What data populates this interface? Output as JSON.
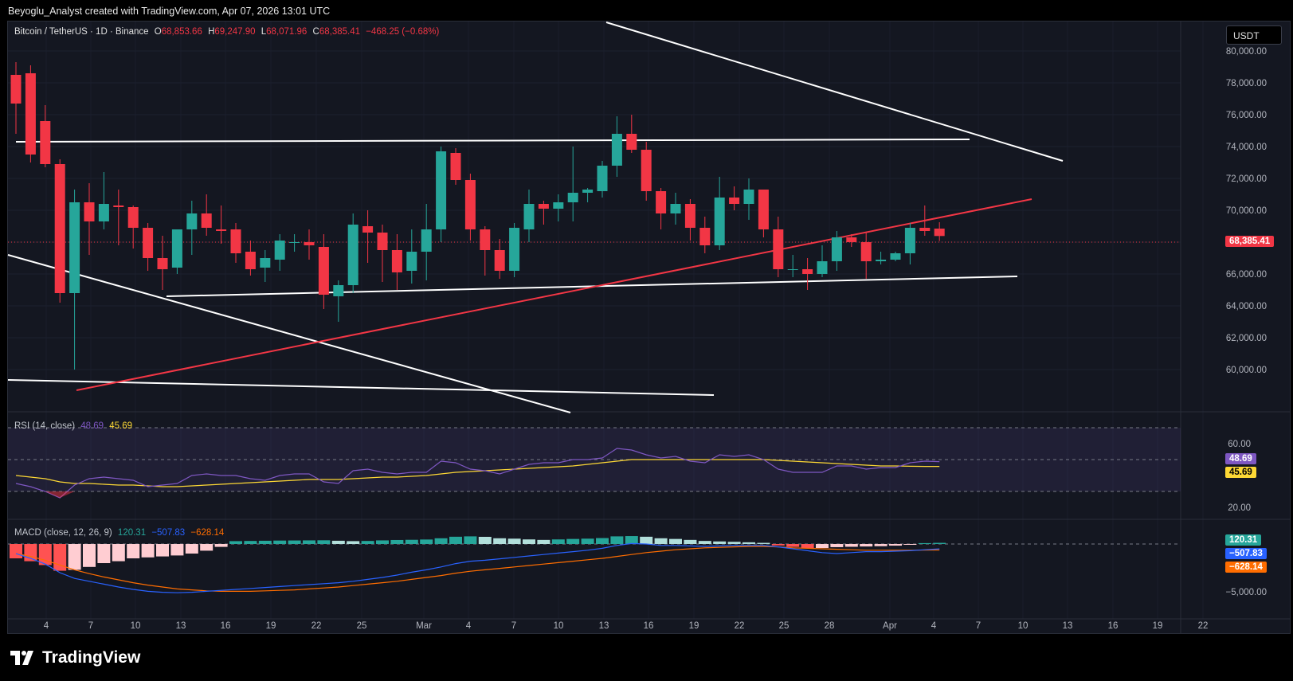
{
  "watermark": "Beyoglu_Analyst created with TradingView.com, Apr 07, 2026 13:01 UTC",
  "brand": "TradingView",
  "currency_button": "USDT",
  "legend": {
    "symbol": "Bitcoin / TetherUS · 1D · Binance",
    "o_label": "O",
    "o": "68,853.66",
    "h_label": "H",
    "h": "69,247.90",
    "l_label": "L",
    "l": "68,071.96",
    "c_label": "C",
    "c": "68,385.41",
    "change": "−468.25 (−0.68%)"
  },
  "rsi_legend": {
    "label": "RSI (14, close)",
    "v1": "48.69",
    "v2": "45.69"
  },
  "macd_legend": {
    "label": "MACD (close, 12, 26, 9)",
    "v1": "120.31",
    "v2": "−507.83",
    "v3": "−628.14"
  },
  "tags": {
    "price": "68,385.41",
    "rsi": "48.69",
    "rsi_ma": "45.69",
    "macd_hist": "120.31",
    "macd": "−507.83",
    "macd_signal": "−628.14"
  },
  "colors": {
    "up": "#26a69a",
    "down": "#f23645",
    "background": "#141721",
    "rsi": "#7e57c2",
    "rsi_ma": "#fdd835",
    "macd": "#2962ff",
    "signal": "#ff6d00"
  },
  "chart_data": [
    {
      "type": "candlestick",
      "title": "Bitcoin / TetherUS · 1D · Binance",
      "y_tick_labels": [
        "80,000.00",
        "78,000.00",
        "76,000.00",
        "74,000.00",
        "72,000.00",
        "70,000.00",
        "68,000.00",
        "66,000.00",
        "64,000.00",
        "62,000.00",
        "60,000.00"
      ],
      "x_tick_labels": [
        "4",
        "7",
        "10",
        "13",
        "16",
        "19",
        "22",
        "25",
        "Mar",
        "4",
        "7",
        "10",
        "13",
        "16",
        "19",
        "22",
        "25",
        "28",
        "Apr",
        "4",
        "7",
        "10",
        "13",
        "16",
        "19",
        "22"
      ],
      "ylim": [
        58500,
        80500
      ],
      "candles": [
        [
          78500,
          79300,
          74800,
          76700
        ],
        [
          78600,
          79100,
          73000,
          73500
        ],
        [
          75600,
          76600,
          72700,
          72900
        ],
        [
          72900,
          73200,
          64200,
          64800
        ],
        [
          64800,
          71300,
          60000,
          70500
        ],
        [
          70500,
          71700,
          67200,
          69300
        ],
        [
          69300,
          72400,
          68800,
          70400
        ],
        [
          70300,
          71300,
          67800,
          70200
        ],
        [
          70200,
          70300,
          67600,
          68900
        ],
        [
          68900,
          69200,
          66200,
          67000
        ],
        [
          67000,
          68400,
          65000,
          66300
        ],
        [
          66400,
          68700,
          66000,
          68800
        ],
        [
          68800,
          70600,
          67200,
          69800
        ],
        [
          69800,
          71000,
          68400,
          68900
        ],
        [
          68800,
          70300,
          67900,
          68700
        ],
        [
          68800,
          69200,
          66700,
          67300
        ],
        [
          67400,
          68100,
          65900,
          66300
        ],
        [
          66400,
          67500,
          65500,
          67000
        ],
        [
          66900,
          68500,
          66200,
          68100
        ],
        [
          68000,
          68500,
          67400,
          68000
        ],
        [
          68000,
          68800,
          66900,
          67800
        ],
        [
          67700,
          68500,
          63800,
          64700
        ],
        [
          64600,
          65600,
          63000,
          65300
        ],
        [
          65300,
          69800,
          64800,
          69100
        ],
        [
          69000,
          70000,
          66700,
          68600
        ],
        [
          68600,
          69100,
          65500,
          67500
        ],
        [
          67500,
          68500,
          65000,
          66100
        ],
        [
          66200,
          68800,
          65400,
          67400
        ],
        [
          67400,
          70400,
          65600,
          68800
        ],
        [
          68800,
          74000,
          68000,
          73700
        ],
        [
          73600,
          73900,
          71600,
          71900
        ],
        [
          71900,
          72300,
          68100,
          68800
        ],
        [
          68800,
          69000,
          65900,
          67500
        ],
        [
          67500,
          68200,
          65700,
          66200
        ],
        [
          66200,
          69200,
          65800,
          68900
        ],
        [
          68800,
          71300,
          68000,
          70400
        ],
        [
          70400,
          70600,
          69100,
          70100
        ],
        [
          70100,
          71000,
          69300,
          70500
        ],
        [
          70500,
          74000,
          69300,
          71100
        ],
        [
          71100,
          71400,
          70500,
          71300
        ],
        [
          71200,
          73100,
          70800,
          72800
        ],
        [
          72800,
          75900,
          72100,
          74800
        ],
        [
          74800,
          76000,
          73600,
          73800
        ],
        [
          73800,
          74300,
          70600,
          71200
        ],
        [
          71200,
          71400,
          68800,
          69800
        ],
        [
          69800,
          71100,
          69100,
          70400
        ],
        [
          70400,
          70700,
          68100,
          68900
        ],
        [
          68900,
          69600,
          67300,
          67800
        ],
        [
          67800,
          72100,
          67500,
          70800
        ],
        [
          70800,
          71500,
          70000,
          70400
        ],
        [
          70400,
          72000,
          69400,
          71300
        ],
        [
          71300,
          71300,
          68300,
          68800
        ],
        [
          68800,
          69600,
          65800,
          66300
        ],
        [
          66300,
          67200,
          65800,
          66300
        ],
        [
          66300,
          67000,
          65000,
          66000
        ],
        [
          66000,
          67800,
          65800,
          66800
        ],
        [
          66800,
          68700,
          66200,
          68300
        ],
        [
          68300,
          68500,
          67700,
          68000
        ],
        [
          68000,
          68600,
          65700,
          66800
        ],
        [
          66800,
          67400,
          66600,
          66900
        ],
        [
          66900,
          67400,
          66800,
          67300
        ],
        [
          67300,
          69200,
          66600,
          68900
        ],
        [
          68900,
          70300,
          68400,
          68700
        ],
        [
          68850,
          69250,
          68070,
          68385
        ]
      ]
    },
    {
      "type": "line",
      "title": "RSI (14, close)",
      "y_tick_labels": [
        "60.00",
        "20.00"
      ],
      "levels": [
        70,
        50,
        30
      ],
      "ylim": [
        15,
        78
      ],
      "series": [
        {
          "name": "RSI",
          "values": [
            35,
            33,
            30,
            26,
            34,
            38,
            39,
            38,
            37,
            33,
            34,
            35,
            40,
            41,
            40,
            40,
            38,
            37,
            40,
            41,
            41,
            36,
            35,
            43,
            44,
            42,
            41,
            42,
            42,
            49,
            48,
            44,
            43,
            41,
            44,
            47,
            48,
            48,
            50,
            50,
            51,
            57,
            56,
            53,
            51,
            52,
            49,
            48,
            53,
            52,
            53,
            50,
            44,
            42,
            42,
            42,
            46,
            46,
            44,
            45,
            45,
            48,
            49,
            48.69
          ]
        },
        {
          "name": "RSI-based MA",
          "values": [
            40,
            39,
            38,
            36,
            35,
            35,
            34.5,
            34,
            34,
            33.5,
            33,
            33,
            33.5,
            34,
            34.5,
            35,
            35.5,
            36,
            36.5,
            37,
            37.5,
            37.5,
            37.5,
            38,
            38.5,
            39,
            39,
            39.5,
            40,
            41,
            42,
            42.5,
            43,
            43.5,
            44,
            44.5,
            45,
            45.5,
            46,
            47,
            48,
            49,
            50,
            50,
            50,
            50,
            50,
            50,
            50,
            50,
            50,
            50,
            49.5,
            49,
            48.5,
            48,
            47.5,
            47,
            46.5,
            46,
            46,
            45.8,
            45.7,
            45.69
          ]
        }
      ]
    },
    {
      "type": "bar",
      "title": "MACD (close, 12, 26, 9)",
      "y_tick_labels": [
        "−5,000.00"
      ],
      "ylim": [
        -6000,
        1800
      ],
      "series": [
        {
          "name": "Histogram",
          "values": [
            -1500,
            -1800,
            -2200,
            -2800,
            -2700,
            -2400,
            -2000,
            -1800,
            -1500,
            -1400,
            -1300,
            -1200,
            -1000,
            -700,
            -300,
            300,
            320,
            340,
            360,
            370,
            380,
            390,
            340,
            300,
            320,
            380,
            420,
            440,
            470,
            600,
            760,
            800,
            750,
            600,
            560,
            480,
            430,
            480,
            530,
            560,
            620,
            800,
            830,
            760,
            600,
            530,
            430,
            320,
            270,
            230,
            180,
            120,
            -150,
            -300,
            -450,
            -420,
            -330,
            -290,
            -260,
            -230,
            -170,
            -70,
            90,
            120.31
          ]
        },
        {
          "name": "MACD",
          "values": [
            -1000,
            -1500,
            -2100,
            -3000,
            -3600,
            -3900,
            -4200,
            -4500,
            -4750,
            -4950,
            -5050,
            -5100,
            -5050,
            -4950,
            -4850,
            -4750,
            -4650,
            -4550,
            -4450,
            -4350,
            -4250,
            -4150,
            -4050,
            -3900,
            -3700,
            -3500,
            -3250,
            -2950,
            -2700,
            -2400,
            -2050,
            -1800,
            -1700,
            -1550,
            -1400,
            -1250,
            -1100,
            -950,
            -800,
            -650,
            -450,
            -150,
            50,
            0,
            -150,
            -150,
            -200,
            -250,
            -200,
            -150,
            -150,
            -150,
            -300,
            -500,
            -700,
            -900,
            -1000,
            -900,
            -800,
            -800,
            -750,
            -700,
            -600,
            -507.83
          ]
        },
        {
          "name": "Signal",
          "values": [
            -1000,
            -1300,
            -1700,
            -2200,
            -2700,
            -3100,
            -3450,
            -3750,
            -4050,
            -4300,
            -4500,
            -4700,
            -4800,
            -4900,
            -4950,
            -4950,
            -4950,
            -4900,
            -4850,
            -4800,
            -4700,
            -4600,
            -4500,
            -4350,
            -4200,
            -4050,
            -3900,
            -3700,
            -3500,
            -3300,
            -3050,
            -2850,
            -2700,
            -2550,
            -2400,
            -2250,
            -2100,
            -1950,
            -1800,
            -1650,
            -1500,
            -1300,
            -1100,
            -900,
            -750,
            -600,
            -500,
            -400,
            -350,
            -300,
            -250,
            -250,
            -300,
            -400,
            -450,
            -500,
            -550,
            -600,
            -650,
            -650,
            -650,
            -650,
            -640,
            -628.14
          ]
        }
      ]
    }
  ]
}
